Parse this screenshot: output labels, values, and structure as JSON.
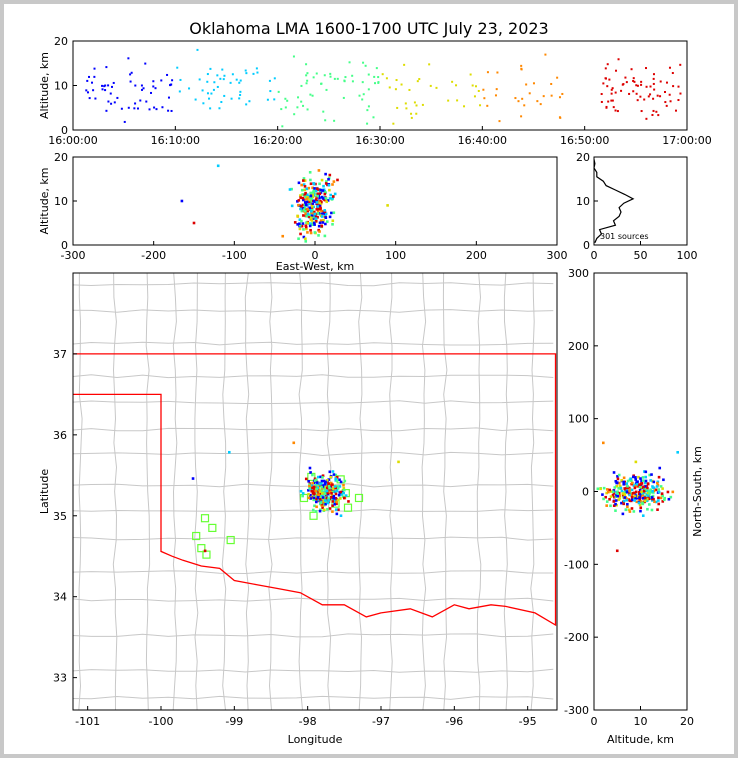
{
  "title": "Oklahoma LMA 1600-1700 UTC July 23, 2023",
  "chart_data": [
    {
      "panel": "time-altitude",
      "type": "scatter",
      "ylabel": "Altitude, km",
      "xlim": [
        "16:00:00",
        "17:00:00"
      ],
      "ylim": [
        0,
        20
      ],
      "xticks": [
        "16:00:00",
        "16:10:00",
        "16:20:00",
        "16:30:00",
        "16:40:00",
        "16:50:00",
        "17:00:00"
      ],
      "yticks": [
        "0",
        "10",
        "20"
      ],
      "color_by": "time",
      "colors": [
        "#0000ff",
        "#00ccff",
        "#44ff88",
        "#dddd00",
        "#ff8800",
        "#dd0000"
      ]
    },
    {
      "panel": "east-west-altitude",
      "type": "scatter",
      "xlabel": "East-West, km",
      "ylabel": "Altitude, km",
      "xlim": [
        -300,
        300
      ],
      "ylim": [
        0,
        20
      ],
      "xticks": [
        "-300",
        "-200",
        "-100",
        "0",
        "100",
        "200",
        "300"
      ],
      "yticks": [
        "0",
        "10",
        "20"
      ]
    },
    {
      "panel": "altitude-histogram",
      "type": "line",
      "xlim": [
        0,
        100
      ],
      "ylim": [
        0,
        20
      ],
      "xticks": [
        "0",
        "50",
        "100"
      ],
      "yticks": [
        "0",
        "10",
        "20"
      ],
      "annotation": "301 sources"
    },
    {
      "panel": "plan-view",
      "type": "scatter",
      "xlabel": "Longitude",
      "ylabel": "Latitude",
      "xlim": [
        -101.2,
        -94.6
      ],
      "ylim": [
        32.6,
        38.0
      ],
      "xticks": [
        "-101",
        "-100",
        "-99",
        "-98",
        "-97",
        "-96",
        "-95"
      ],
      "yticks": [
        "33",
        "34",
        "35",
        "36",
        "37"
      ],
      "state_border_color": "#ff0000",
      "county_line_color": "#c8c8c8",
      "station_marker_color": "#66ff33",
      "stations": [
        {
          "lon": -97.95,
          "lat": 35.48
        },
        {
          "lon": -97.55,
          "lat": 35.45
        },
        {
          "lon": -97.75,
          "lat": 35.32
        },
        {
          "lon": -97.48,
          "lat": 35.28
        },
        {
          "lon": -97.3,
          "lat": 35.22
        },
        {
          "lon": -97.88,
          "lat": 35.25
        },
        {
          "lon": -98.05,
          "lat": 35.22
        },
        {
          "lon": -97.62,
          "lat": 35.15
        },
        {
          "lon": -97.45,
          "lat": 35.1
        },
        {
          "lon": -97.92,
          "lat": 35.0
        },
        {
          "lon": -99.4,
          "lat": 34.97
        },
        {
          "lon": -99.3,
          "lat": 34.85
        },
        {
          "lon": -99.52,
          "lat": 34.75
        },
        {
          "lon": -99.45,
          "lat": 34.6
        },
        {
          "lon": -99.38,
          "lat": 34.52
        },
        {
          "lon": -99.05,
          "lat": 34.7
        }
      ]
    },
    {
      "panel": "altitude-north-south",
      "type": "scatter",
      "xlabel": "Altitude, km",
      "ylabel": "North-South, km",
      "xlim": [
        0,
        20
      ],
      "ylim": [
        -300,
        300
      ],
      "xticks": [
        "0",
        "10",
        "20"
      ],
      "yticks": [
        "-300",
        "-200",
        "-100",
        "0",
        "100",
        "200",
        "300"
      ]
    }
  ]
}
